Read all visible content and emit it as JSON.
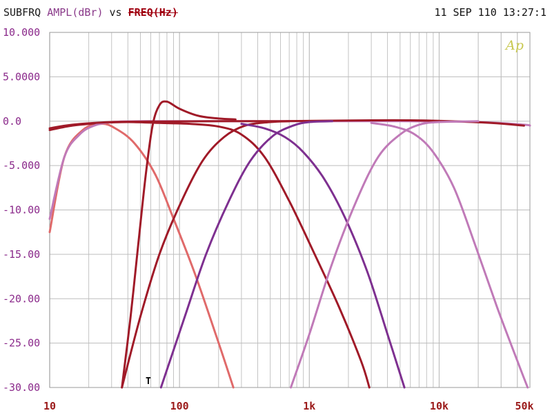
{
  "header": {
    "left_sub": "SUBFRQ",
    "left_ampl": "AMPL(dBr)",
    "left_vs": "vs",
    "left_freq": "FREQ(Hz)",
    "right": "11 SEP 110 13:27:1"
  },
  "logo": "Ap",
  "marker": "T",
  "chart_data": {
    "type": "line",
    "title": "",
    "xlabel": "FREQ(Hz)",
    "ylabel": "AMPL(dBr)",
    "x_scale": "log",
    "xlim": [
      10,
      50000
    ],
    "ylim": [
      -30,
      10
    ],
    "grid": true,
    "x_ticks": [
      {
        "v": 10,
        "label": "10"
      },
      {
        "v": 100,
        "label": "100"
      },
      {
        "v": 1000,
        "label": "1k"
      },
      {
        "v": 10000,
        "label": "10k"
      },
      {
        "v": 50000,
        "label": "50k"
      }
    ],
    "y_ticks": [
      {
        "v": 10,
        "label": "10.000"
      },
      {
        "v": 5,
        "label": "5.0000"
      },
      {
        "v": 0,
        "label": "0.0"
      },
      {
        "v": -5,
        "label": "-5.000"
      },
      {
        "v": -10,
        "label": "-10.00"
      },
      {
        "v": -15,
        "label": "-15.00"
      },
      {
        "v": -20,
        "label": "-20.00"
      },
      {
        "v": -25,
        "label": "-25.00"
      },
      {
        "v": -30,
        "label": "-30.00"
      }
    ],
    "series": [
      {
        "color": "#e06a6a",
        "points": [
          [
            10,
            -12.5
          ],
          [
            13,
            -4
          ],
          [
            18,
            -1.0
          ],
          [
            25,
            -0.3
          ],
          [
            32,
            -0.8
          ],
          [
            45,
            -2.5
          ],
          [
            65,
            -6
          ],
          [
            90,
            -11
          ],
          [
            130,
            -17
          ],
          [
            190,
            -24
          ],
          [
            260,
            -30
          ]
        ]
      },
      {
        "color": "#a01a28",
        "points": [
          [
            10,
            -1.0
          ],
          [
            15,
            -0.5
          ],
          [
            25,
            -0.2
          ],
          [
            40,
            -0.1
          ],
          [
            70,
            -0.2
          ],
          [
            120,
            -0.3
          ],
          [
            200,
            -0.6
          ],
          [
            300,
            -1.5
          ],
          [
            450,
            -4
          ],
          [
            700,
            -9
          ],
          [
            1100,
            -15
          ],
          [
            1700,
            -21
          ],
          [
            2500,
            -27
          ],
          [
            2900,
            -30
          ]
        ]
      },
      {
        "color": "#c07ab8",
        "points": [
          [
            10,
            -11
          ],
          [
            13,
            -4
          ],
          [
            17,
            -1.5
          ],
          [
            22,
            -0.5
          ],
          [
            30,
            -0.1
          ],
          [
            50,
            0
          ],
          [
            100,
            0
          ],
          [
            1000,
            0
          ],
          [
            5000,
            0
          ],
          [
            20000,
            -0.1
          ],
          [
            45000,
            -0.4
          ],
          [
            50000,
            -0.5
          ]
        ]
      },
      {
        "color": "#a01a28",
        "points": [
          [
            10,
            -0.8
          ],
          [
            15,
            -0.4
          ],
          [
            30,
            -0.1
          ],
          [
            60,
            -0.05
          ],
          [
            200,
            0
          ],
          [
            600,
            0
          ],
          [
            3000,
            0.1
          ],
          [
            6000,
            0.1
          ],
          [
            12000,
            0
          ],
          [
            25000,
            -0.2
          ],
          [
            45000,
            -0.5
          ]
        ]
      },
      {
        "color": "#a01a28",
        "points": [
          [
            36,
            -30
          ],
          [
            42,
            -22
          ],
          [
            48,
            -14
          ],
          [
            55,
            -6
          ],
          [
            62,
            -0.5
          ],
          [
            70,
            1.8
          ],
          [
            80,
            2.2
          ],
          [
            100,
            1.4
          ],
          [
            140,
            0.6
          ],
          [
            200,
            0.3
          ],
          [
            270,
            0.2
          ]
        ]
      },
      {
        "color": "#a01a28",
        "points": [
          [
            36,
            -30
          ],
          [
            50,
            -22
          ],
          [
            70,
            -15
          ],
          [
            100,
            -9.5
          ],
          [
            150,
            -4.5
          ],
          [
            220,
            -1.8
          ],
          [
            320,
            -0.5
          ],
          [
            500,
            -0.1
          ],
          [
            700,
            0
          ]
        ]
      },
      {
        "color": "#7e3090",
        "points": [
          [
            72,
            -30
          ],
          [
            110,
            -22
          ],
          [
            160,
            -15
          ],
          [
            240,
            -9
          ],
          [
            350,
            -4.5
          ],
          [
            520,
            -1.7
          ],
          [
            750,
            -0.5
          ],
          [
            1000,
            -0.1
          ],
          [
            1500,
            0
          ]
        ]
      },
      {
        "color": "#7e3090",
        "points": [
          [
            300,
            -0.3
          ],
          [
            450,
            -0.8
          ],
          [
            650,
            -1.8
          ],
          [
            900,
            -3.5
          ],
          [
            1300,
            -6.5
          ],
          [
            1900,
            -11
          ],
          [
            2800,
            -17
          ],
          [
            4000,
            -24
          ],
          [
            5400,
            -30
          ]
        ]
      },
      {
        "color": "#c07ab8",
        "points": [
          [
            720,
            -30
          ],
          [
            1000,
            -24
          ],
          [
            1500,
            -16
          ],
          [
            2300,
            -9
          ],
          [
            3400,
            -4
          ],
          [
            5000,
            -1.5
          ],
          [
            7000,
            -0.4
          ],
          [
            10000,
            -0.1
          ],
          [
            20000,
            0
          ]
        ]
      },
      {
        "color": "#c07ab8",
        "points": [
          [
            3000,
            -0.2
          ],
          [
            4500,
            -0.6
          ],
          [
            6500,
            -1.5
          ],
          [
            9000,
            -3.5
          ],
          [
            13000,
            -7.5
          ],
          [
            19000,
            -14
          ],
          [
            28000,
            -21
          ],
          [
            40000,
            -27
          ],
          [
            48000,
            -30
          ]
        ]
      }
    ]
  }
}
